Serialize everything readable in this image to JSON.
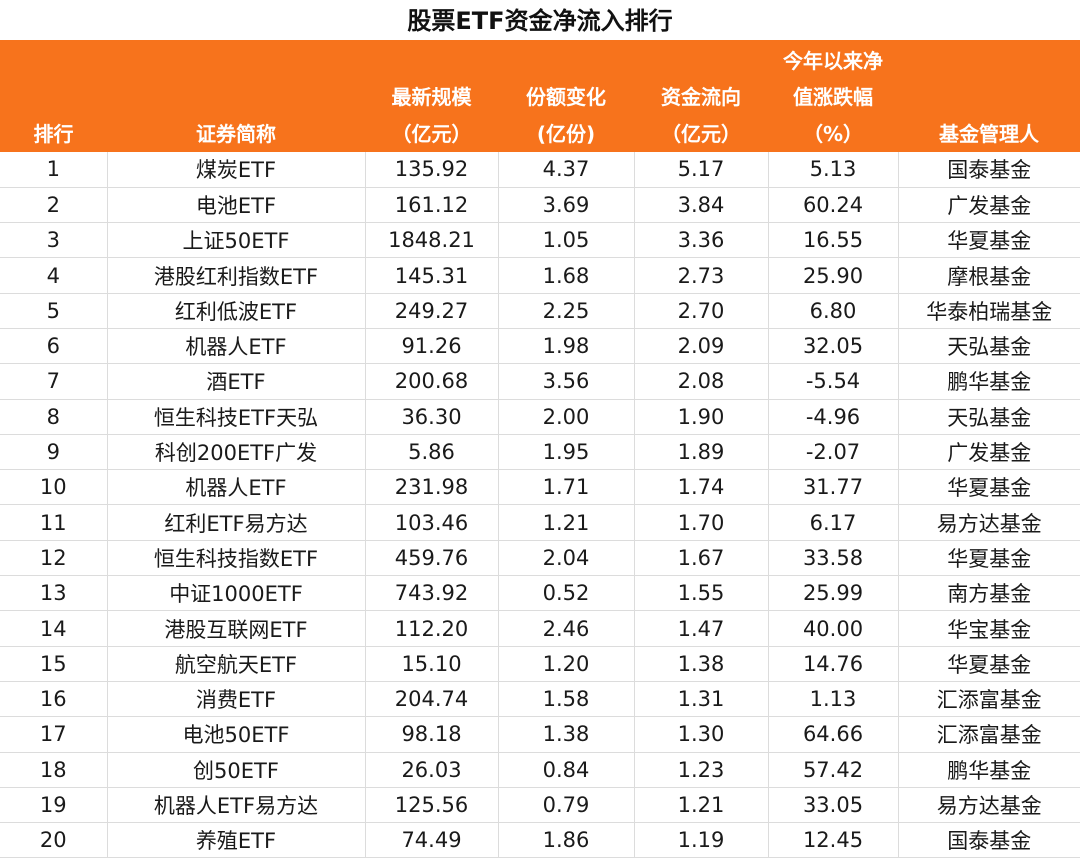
{
  "title": "股票ETF资金净流入排行",
  "colors": {
    "header_bg": "#F7731C",
    "header_text": "#ffffff"
  },
  "columns": [
    {
      "lines": [
        "排行"
      ]
    },
    {
      "lines": [
        "证券简称"
      ]
    },
    {
      "lines": [
        "最新规模",
        "（亿元）"
      ]
    },
    {
      "lines": [
        "份额变化",
        "(亿份)"
      ]
    },
    {
      "lines": [
        "资金流向",
        "（亿元）"
      ]
    },
    {
      "lines": [
        "今年以来净",
        "值涨跌幅",
        "（%）"
      ]
    },
    {
      "lines": [
        "基金管理人"
      ]
    }
  ],
  "rows": [
    [
      "1",
      "煤炭ETF",
      "135.92",
      "4.37",
      "5.17",
      "5.13",
      "国泰基金"
    ],
    [
      "2",
      "电池ETF",
      "161.12",
      "3.69",
      "3.84",
      "60.24",
      "广发基金"
    ],
    [
      "3",
      "上证50ETF",
      "1848.21",
      "1.05",
      "3.36",
      "16.55",
      "华夏基金"
    ],
    [
      "4",
      "港股红利指数ETF",
      "145.31",
      "1.68",
      "2.73",
      "25.90",
      "摩根基金"
    ],
    [
      "5",
      "红利低波ETF",
      "249.27",
      "2.25",
      "2.70",
      "6.80",
      "华泰柏瑞基金"
    ],
    [
      "6",
      "机器人ETF",
      "91.26",
      "1.98",
      "2.09",
      "32.05",
      "天弘基金"
    ],
    [
      "7",
      "酒ETF",
      "200.68",
      "3.56",
      "2.08",
      "-5.54",
      "鹏华基金"
    ],
    [
      "8",
      "恒生科技ETF天弘",
      "36.30",
      "2.00",
      "1.90",
      "-4.96",
      "天弘基金"
    ],
    [
      "9",
      "科创200ETF广发",
      "5.86",
      "1.95",
      "1.89",
      "-2.07",
      "广发基金"
    ],
    [
      "10",
      "机器人ETF",
      "231.98",
      "1.71",
      "1.74",
      "31.77",
      "华夏基金"
    ],
    [
      "11",
      "红利ETF易方达",
      "103.46",
      "1.21",
      "1.70",
      "6.17",
      "易方达基金"
    ],
    [
      "12",
      "恒生科技指数ETF",
      "459.76",
      "2.04",
      "1.67",
      "33.58",
      "华夏基金"
    ],
    [
      "13",
      "中证1000ETF",
      "743.92",
      "0.52",
      "1.55",
      "25.99",
      "南方基金"
    ],
    [
      "14",
      "港股互联网ETF",
      "112.20",
      "2.46",
      "1.47",
      "40.00",
      "华宝基金"
    ],
    [
      "15",
      "航空航天ETF",
      "15.10",
      "1.20",
      "1.38",
      "14.76",
      "华夏基金"
    ],
    [
      "16",
      "消费ETF",
      "204.74",
      "1.58",
      "1.31",
      "1.13",
      "汇添富基金"
    ],
    [
      "17",
      "电池50ETF",
      "98.18",
      "1.38",
      "1.30",
      "64.66",
      "汇添富基金"
    ],
    [
      "18",
      "创50ETF",
      "26.03",
      "0.84",
      "1.23",
      "57.42",
      "鹏华基金"
    ],
    [
      "19",
      "机器人ETF易方达",
      "125.56",
      "0.79",
      "1.21",
      "33.05",
      "易方达基金"
    ],
    [
      "20",
      "养殖ETF",
      "74.49",
      "1.86",
      "1.19",
      "12.45",
      "国泰基金"
    ]
  ]
}
